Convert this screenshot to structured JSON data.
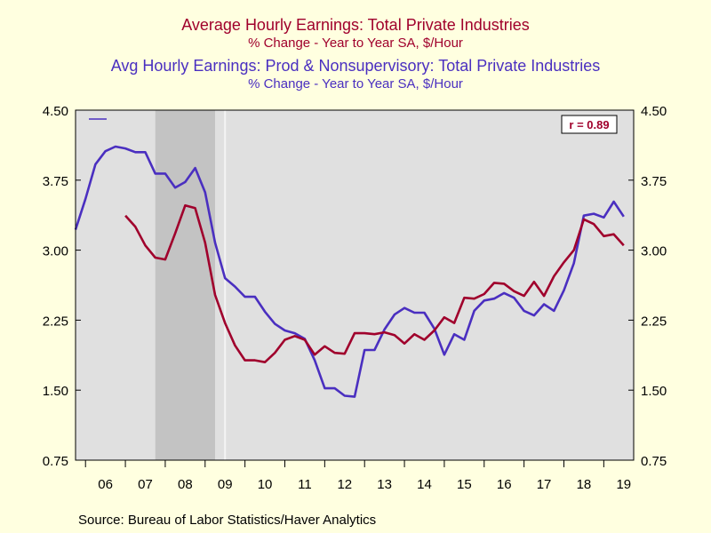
{
  "titles": {
    "series1_title": "Average Hourly Earnings: Total Private Industries",
    "series1_subtitle": "% Change - Year to Year     SA, $/Hour",
    "series2_title": "Avg Hourly Earnings: Prod & Nonsupervisory: Total Private Industries",
    "series2_subtitle": "% Change - Year to Year     SA, $/Hour"
  },
  "colors": {
    "series1": "#a0002c",
    "series2": "#4a2fc0",
    "plot_bg": "#e0e0e0",
    "recession": "#c3c3c3",
    "page_bg": "#ffffe0"
  },
  "annotation": "r = 0.89",
  "source": "Source:  Bureau of Labor Statistics/Haver Analytics",
  "chart_data": {
    "type": "line",
    "x_start": 2005.75,
    "x_end": 2019.75,
    "ylim": [
      0.75,
      4.5
    ],
    "yticks": [
      "0.75",
      "1.50",
      "2.25",
      "3.00",
      "3.75",
      "4.50"
    ],
    "ytick_values": [
      0.75,
      1.5,
      2.25,
      3.0,
      3.75,
      4.5
    ],
    "xticks": [
      "06",
      "07",
      "08",
      "09",
      "10",
      "11",
      "12",
      "13",
      "14",
      "15",
      "16",
      "17",
      "18",
      "19"
    ],
    "recession": [
      2007.75,
      2009.25
    ],
    "series": [
      {
        "name": "Average Hourly Earnings: Total Private Industries",
        "points": [
          [
            2007.0,
            3.37
          ],
          [
            2007.25,
            3.25
          ],
          [
            2007.5,
            3.05
          ],
          [
            2007.75,
            2.92
          ],
          [
            2008.0,
            2.9
          ],
          [
            2008.25,
            3.18
          ],
          [
            2008.5,
            3.48
          ],
          [
            2008.75,
            3.45
          ],
          [
            2009.0,
            3.08
          ],
          [
            2009.25,
            2.52
          ],
          [
            2009.5,
            2.22
          ],
          [
            2009.75,
            1.98
          ],
          [
            2010.0,
            1.82
          ],
          [
            2010.25,
            1.82
          ],
          [
            2010.5,
            1.8
          ],
          [
            2010.75,
            1.9
          ],
          [
            2011.0,
            2.04
          ],
          [
            2011.25,
            2.08
          ],
          [
            2011.5,
            2.04
          ],
          [
            2011.75,
            1.88
          ],
          [
            2012.0,
            1.97
          ],
          [
            2012.25,
            1.9
          ],
          [
            2012.5,
            1.89
          ],
          [
            2012.75,
            2.11
          ],
          [
            2013.0,
            2.11
          ],
          [
            2013.25,
            2.1
          ],
          [
            2013.5,
            2.12
          ],
          [
            2013.75,
            2.09
          ],
          [
            2014.0,
            2.0
          ],
          [
            2014.25,
            2.1
          ],
          [
            2014.5,
            2.04
          ],
          [
            2014.75,
            2.14
          ],
          [
            2015.0,
            2.28
          ],
          [
            2015.25,
            2.22
          ],
          [
            2015.5,
            2.49
          ],
          [
            2015.75,
            2.48
          ],
          [
            2016.0,
            2.53
          ],
          [
            2016.25,
            2.65
          ],
          [
            2016.5,
            2.64
          ],
          [
            2016.75,
            2.56
          ],
          [
            2017.0,
            2.51
          ],
          [
            2017.25,
            2.66
          ],
          [
            2017.5,
            2.51
          ],
          [
            2017.75,
            2.72
          ],
          [
            2018.0,
            2.87
          ],
          [
            2018.25,
            3.0
          ],
          [
            2018.5,
            3.33
          ],
          [
            2018.75,
            3.28
          ],
          [
            2019.0,
            3.15
          ],
          [
            2019.25,
            3.17
          ],
          [
            2019.5,
            3.05
          ]
        ]
      },
      {
        "name": "Avg Hourly Earnings: Prod & Nonsupervisory: Total Private Industries",
        "points": [
          [
            2005.75,
            3.22
          ],
          [
            2006.0,
            3.55
          ],
          [
            2006.25,
            3.92
          ],
          [
            2006.5,
            4.06
          ],
          [
            2006.75,
            4.11
          ],
          [
            2007.0,
            4.09
          ],
          [
            2007.25,
            4.05
          ],
          [
            2007.5,
            4.05
          ],
          [
            2007.75,
            3.82
          ],
          [
            2008.0,
            3.82
          ],
          [
            2008.25,
            3.67
          ],
          [
            2008.5,
            3.73
          ],
          [
            2008.75,
            3.88
          ],
          [
            2009.0,
            3.62
          ],
          [
            2009.25,
            3.08
          ],
          [
            2009.5,
            2.7
          ],
          [
            2009.75,
            2.61
          ],
          [
            2010.0,
            2.5
          ],
          [
            2010.25,
            2.5
          ],
          [
            2010.5,
            2.34
          ],
          [
            2010.75,
            2.21
          ],
          [
            2011.0,
            2.14
          ],
          [
            2011.25,
            2.11
          ],
          [
            2011.5,
            2.05
          ],
          [
            2011.75,
            1.82
          ],
          [
            2012.0,
            1.52
          ],
          [
            2012.25,
            1.52
          ],
          [
            2012.5,
            1.44
          ],
          [
            2012.75,
            1.43
          ],
          [
            2013.0,
            1.93
          ],
          [
            2013.25,
            1.93
          ],
          [
            2013.5,
            2.15
          ],
          [
            2013.75,
            2.31
          ],
          [
            2014.0,
            2.38
          ],
          [
            2014.25,
            2.33
          ],
          [
            2014.5,
            2.33
          ],
          [
            2014.75,
            2.16
          ],
          [
            2015.0,
            1.88
          ],
          [
            2015.25,
            2.1
          ],
          [
            2015.5,
            2.04
          ],
          [
            2015.75,
            2.35
          ],
          [
            2016.0,
            2.46
          ],
          [
            2016.25,
            2.48
          ],
          [
            2016.5,
            2.54
          ],
          [
            2016.75,
            2.49
          ],
          [
            2017.0,
            2.35
          ],
          [
            2017.25,
            2.3
          ],
          [
            2017.5,
            2.42
          ],
          [
            2017.75,
            2.35
          ],
          [
            2018.0,
            2.57
          ],
          [
            2018.25,
            2.86
          ],
          [
            2018.5,
            3.37
          ],
          [
            2018.75,
            3.39
          ],
          [
            2019.0,
            3.35
          ],
          [
            2019.25,
            3.52
          ],
          [
            2019.5,
            3.36
          ]
        ]
      }
    ]
  }
}
